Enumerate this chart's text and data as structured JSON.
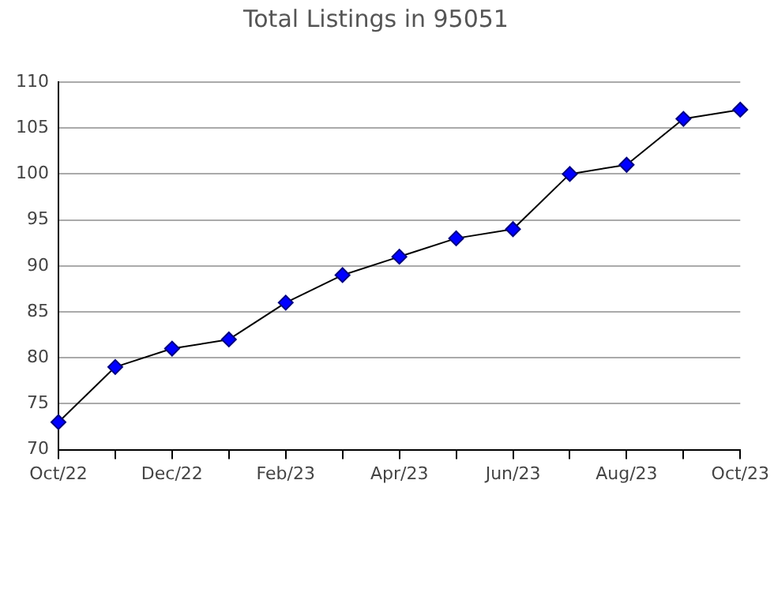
{
  "chart_data": {
    "type": "line",
    "title": "Total Listings in 95051",
    "categories": [
      "Oct/22",
      null,
      "Dec/22",
      null,
      "Feb/23",
      null,
      "Apr/23",
      null,
      "Jun/23",
      null,
      "Aug/23",
      null,
      "Oct/23"
    ],
    "series": [
      {
        "color": "#0000ff",
        "values": [
          73,
          79,
          81,
          82,
          86,
          89,
          91,
          93,
          94,
          100,
          101,
          106,
          107
        ]
      }
    ],
    "ylim": [
      70,
      110
    ],
    "yticks": [
      70,
      75,
      80,
      85,
      90,
      95,
      100,
      105,
      110
    ],
    "grid": "y",
    "marker": "diamond",
    "line_style": "solid",
    "legend": false
  }
}
